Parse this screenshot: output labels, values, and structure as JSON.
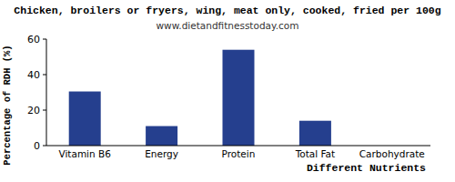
{
  "chart_data": {
    "type": "bar",
    "title": "Chicken, broilers or fryers, wing, meat only, cooked, fried per 100g",
    "subtitle": "www.dietandfitnesstoday.com",
    "x_label": "Different Nutrients",
    "y_label": "Percentage of RDH (%)",
    "categories": [
      "Vitamin B6",
      "Energy",
      "Protein",
      "Total Fat",
      "Carbohydrate"
    ],
    "values": [
      30.5,
      11,
      54,
      14,
      0
    ],
    "color": "#253f8e",
    "ylim": [
      0,
      60
    ],
    "yticks": [
      0,
      20,
      40,
      60
    ],
    "grid": false
  }
}
